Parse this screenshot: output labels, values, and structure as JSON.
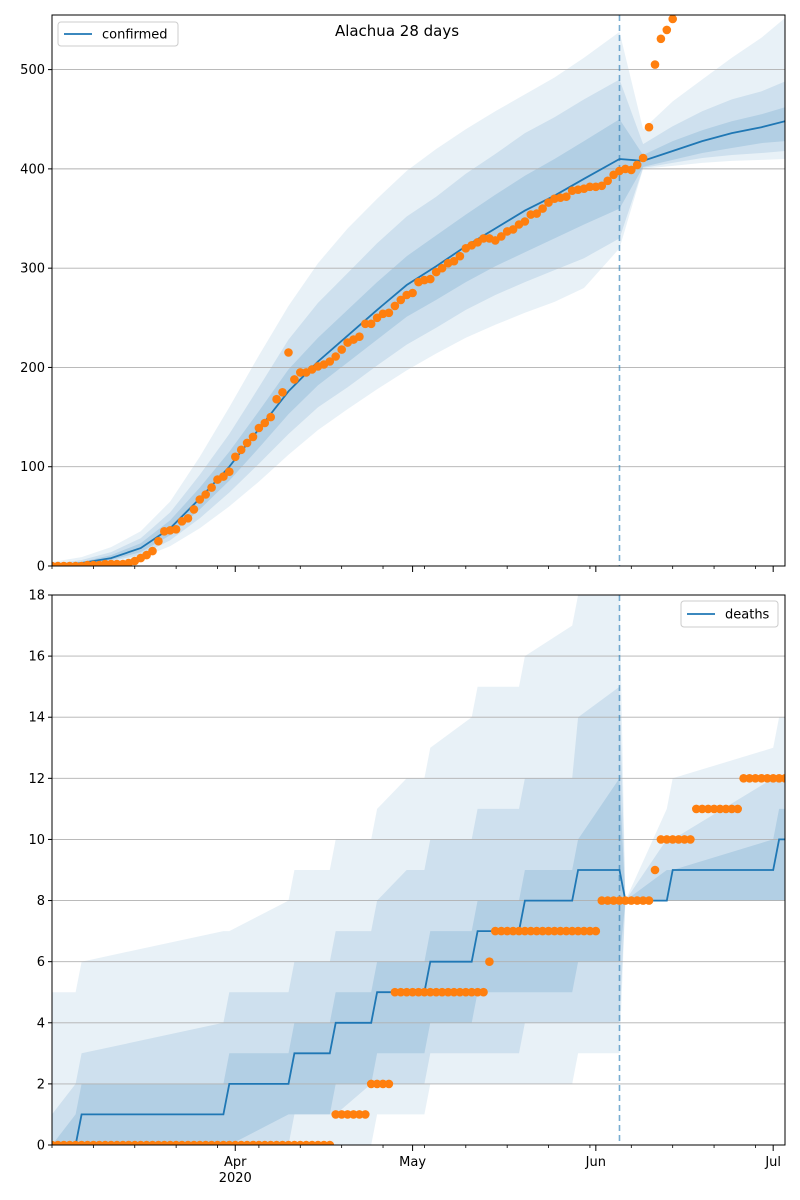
{
  "colors": {
    "model": "#1f77b4",
    "observed": "#ff7f0e",
    "band": "#1f77b4",
    "grid": "#b0b0b0"
  },
  "chart_data": [
    {
      "type": "line",
      "title": "Alachua 28 days",
      "legend": {
        "label": "confirmed",
        "placement": "top-left"
      },
      "x_ticks": [
        {
          "day": 31,
          "label": "Apr"
        },
        {
          "day": 61,
          "label": "May"
        },
        {
          "day": 92,
          "label": "Jun"
        },
        {
          "day": 122,
          "label": "Jul"
        }
      ],
      "x_year_label": {
        "day": 31,
        "label": "2020"
      },
      "xlim": [
        0,
        124
      ],
      "ylim": [
        0,
        555
      ],
      "yticks": [
        0,
        100,
        200,
        300,
        400,
        500
      ],
      "grid": "horizontal",
      "forecast_start_day": 96,
      "model": {
        "x": [
          0,
          5,
          10,
          15,
          20,
          25,
          30,
          35,
          40,
          45,
          50,
          55,
          60,
          65,
          70,
          75,
          80,
          85,
          90,
          96,
          100,
          105,
          110,
          115,
          120,
          124
        ],
        "y": [
          0,
          3,
          8,
          18,
          38,
          68,
          100,
          138,
          176,
          206,
          232,
          258,
          283,
          302,
          322,
          340,
          358,
          373,
          390,
          410,
          408,
          418,
          428,
          436,
          442,
          448
        ],
        "ci50": [
          [
            0,
            1
          ],
          [
            2,
            4
          ],
          [
            6,
            11
          ],
          [
            14,
            23
          ],
          [
            31,
            46
          ],
          [
            57,
            79
          ],
          [
            86,
            115
          ],
          [
            119,
            156
          ],
          [
            153,
            198
          ],
          [
            182,
            230
          ],
          [
            205,
            258
          ],
          [
            228,
            286
          ],
          [
            251,
            312
          ],
          [
            268,
            333
          ],
          [
            286,
            354
          ],
          [
            302,
            374
          ],
          [
            316,
            393
          ],
          [
            330,
            410
          ],
          [
            344,
            428
          ],
          [
            360,
            450
          ],
          [
            402,
            414
          ],
          [
            409,
            428
          ],
          [
            416,
            439
          ],
          [
            421,
            448
          ],
          [
            426,
            455
          ],
          [
            428,
            462
          ]
        ],
        "ci80": [
          [
            0,
            2
          ],
          [
            1,
            6
          ],
          [
            5,
            14
          ],
          [
            11,
            28
          ],
          [
            26,
            54
          ],
          [
            48,
            92
          ],
          [
            74,
            133
          ],
          [
            103,
            180
          ],
          [
            133,
            228
          ],
          [
            160,
            265
          ],
          [
            180,
            295
          ],
          [
            202,
            325
          ],
          [
            223,
            352
          ],
          [
            240,
            372
          ],
          [
            258,
            395
          ],
          [
            273,
            415
          ],
          [
            286,
            436
          ],
          [
            298,
            452
          ],
          [
            310,
            470
          ],
          [
            330,
            490
          ],
          [
            401,
            425
          ],
          [
            406,
            443
          ],
          [
            411,
            458
          ],
          [
            414,
            470
          ],
          [
            416,
            478
          ],
          [
            418,
            488
          ]
        ],
        "ci95": [
          [
            0,
            4
          ],
          [
            0,
            9
          ],
          [
            3,
            19
          ],
          [
            8,
            35
          ],
          [
            20,
            65
          ],
          [
            38,
            110
          ],
          [
            60,
            160
          ],
          [
            85,
            212
          ],
          [
            112,
            262
          ],
          [
            137,
            305
          ],
          [
            158,
            340
          ],
          [
            178,
            370
          ],
          [
            197,
            398
          ],
          [
            214,
            420
          ],
          [
            230,
            440
          ],
          [
            243,
            458
          ],
          [
            255,
            475
          ],
          [
            266,
            492
          ],
          [
            280,
            512
          ],
          [
            320,
            538
          ],
          [
            400,
            440
          ],
          [
            403,
            468
          ],
          [
            406,
            490
          ],
          [
            408,
            512
          ],
          [
            409,
            532
          ],
          [
            410,
            552
          ]
        ]
      },
      "observed": {
        "x": [
          0,
          1,
          2,
          3,
          4,
          5,
          6,
          7,
          8,
          9,
          10,
          11,
          12,
          13,
          14,
          15,
          16,
          17,
          18,
          19,
          20,
          21,
          22,
          23,
          24,
          25,
          26,
          27,
          28,
          29,
          30,
          31,
          32,
          33,
          34,
          35,
          36,
          37,
          38,
          39,
          40,
          41,
          42,
          43,
          44,
          45,
          46,
          47,
          48,
          49,
          50,
          51,
          52,
          53,
          54,
          55,
          56,
          57,
          58,
          59,
          60,
          61,
          62,
          63,
          64,
          65,
          66,
          67,
          68,
          69,
          70,
          71,
          72,
          73,
          74,
          75,
          76,
          77,
          78,
          79,
          80,
          81,
          82,
          83,
          84,
          85,
          86,
          87,
          88,
          89,
          90,
          91,
          92,
          93,
          94,
          95,
          96,
          97,
          98,
          99,
          100,
          101,
          102,
          103,
          104,
          105
        ],
        "y": [
          0,
          0,
          0,
          0,
          0,
          0,
          1,
          1,
          1,
          2,
          2,
          2,
          2,
          3,
          5,
          8,
          11,
          15,
          25,
          35,
          36,
          37,
          45,
          48,
          57,
          67,
          72,
          79,
          87,
          90,
          95,
          110,
          117,
          124,
          130,
          139,
          144,
          150,
          168,
          175,
          215,
          188,
          195,
          195,
          198,
          201,
          203,
          206,
          211,
          218,
          225,
          228,
          231,
          244,
          244,
          250,
          254,
          255,
          262,
          268,
          273,
          275,
          286,
          288,
          289,
          296,
          300,
          305,
          307,
          312,
          320,
          323,
          326,
          330,
          330,
          328,
          332,
          337,
          339,
          344,
          347,
          354,
          355,
          360,
          366,
          370,
          371,
          372,
          378,
          379,
          380,
          382,
          382,
          383,
          388,
          394,
          398,
          400,
          399,
          404,
          411,
          442,
          505,
          531,
          540,
          551
        ]
      }
    },
    {
      "type": "line",
      "title": "",
      "legend": {
        "label": "deaths",
        "placement": "top-right"
      },
      "x_ticks": [
        {
          "day": 31,
          "label": "Apr"
        },
        {
          "day": 61,
          "label": "May"
        },
        {
          "day": 92,
          "label": "Jun"
        },
        {
          "day": 122,
          "label": "Jul"
        }
      ],
      "x_year_label": {
        "day": 31,
        "label": "2020"
      },
      "xlim": [
        0,
        124
      ],
      "ylim": [
        0,
        18
      ],
      "yticks": [
        0,
        2,
        4,
        6,
        8,
        10,
        12,
        14,
        16,
        18
      ],
      "grid": "horizontal",
      "forecast_start_day": 96,
      "model": {
        "x": [
          0,
          4,
          5,
          29,
          30,
          40,
          41,
          47,
          48,
          54,
          55,
          60,
          61,
          63,
          64,
          71,
          72,
          79,
          80,
          88,
          89,
          96,
          97,
          104,
          105,
          122,
          123,
          124
        ],
        "y": [
          0,
          0,
          1,
          1,
          2,
          2,
          3,
          3,
          4,
          4,
          5,
          5,
          5,
          5,
          6,
          6,
          7,
          7,
          8,
          8,
          9,
          9,
          8,
          8,
          9,
          9,
          10,
          10
        ],
        "ci50": [
          [
            0,
            0
          ],
          [
            0,
            1
          ],
          [
            0,
            2
          ],
          [
            0,
            2
          ],
          [
            0,
            3
          ],
          [
            1,
            3
          ],
          [
            1,
            4
          ],
          [
            1,
            4
          ],
          [
            2,
            5
          ],
          [
            2,
            5
          ],
          [
            3,
            6
          ],
          [
            3,
            6
          ],
          [
            3,
            6
          ],
          [
            3,
            6
          ],
          [
            4,
            7
          ],
          [
            4,
            7
          ],
          [
            5,
            8
          ],
          [
            5,
            8
          ],
          [
            5,
            9
          ],
          [
            5,
            9
          ],
          [
            6,
            10
          ],
          [
            6,
            12
          ],
          [
            8,
            8
          ],
          [
            8,
            9
          ],
          [
            8,
            9
          ],
          [
            8,
            10
          ],
          [
            8,
            11
          ],
          [
            8,
            11
          ]
        ],
        "ci80": [
          [
            0,
            1
          ],
          [
            0,
            2
          ],
          [
            0,
            3
          ],
          [
            0,
            4
          ],
          [
            0,
            5
          ],
          [
            0,
            5
          ],
          [
            1,
            6
          ],
          [
            1,
            6
          ],
          [
            1,
            7
          ],
          [
            2,
            7
          ],
          [
            2,
            8
          ],
          [
            2,
            9
          ],
          [
            2,
            9
          ],
          [
            2,
            9
          ],
          [
            3,
            10
          ],
          [
            3,
            10
          ],
          [
            3,
            11
          ],
          [
            3,
            11
          ],
          [
            4,
            12
          ],
          [
            4,
            12
          ],
          [
            4,
            14
          ],
          [
            4,
            15
          ],
          [
            8,
            8
          ],
          [
            8,
            10
          ],
          [
            8,
            10
          ],
          [
            8,
            12
          ],
          [
            8,
            12
          ],
          [
            8,
            12
          ]
        ],
        "ci95": [
          [
            0,
            5
          ],
          [
            0,
            5
          ],
          [
            0,
            6
          ],
          [
            0,
            7
          ],
          [
            0,
            7
          ],
          [
            0,
            8
          ],
          [
            0,
            9
          ],
          [
            0,
            9
          ],
          [
            0,
            10
          ],
          [
            0,
            10
          ],
          [
            1,
            11
          ],
          [
            1,
            12
          ],
          [
            1,
            12
          ],
          [
            1,
            12
          ],
          [
            2,
            13
          ],
          [
            2,
            14
          ],
          [
            2,
            15
          ],
          [
            2,
            15
          ],
          [
            2,
            16
          ],
          [
            2,
            17
          ],
          [
            3,
            18
          ],
          [
            3,
            18
          ],
          [
            8,
            8
          ],
          [
            8,
            11
          ],
          [
            8,
            12
          ],
          [
            8,
            13
          ],
          [
            8,
            14
          ],
          [
            8,
            14
          ]
        ]
      },
      "observed": {
        "x": [
          0,
          1,
          2,
          3,
          4,
          5,
          6,
          7,
          8,
          9,
          10,
          11,
          12,
          13,
          14,
          15,
          16,
          17,
          18,
          19,
          20,
          21,
          22,
          23,
          24,
          25,
          26,
          27,
          28,
          29,
          30,
          31,
          32,
          33,
          34,
          35,
          36,
          37,
          38,
          39,
          40,
          41,
          42,
          43,
          44,
          45,
          46,
          47,
          48,
          49,
          50,
          51,
          52,
          53,
          54,
          55,
          56,
          57,
          58,
          59,
          60,
          61,
          62,
          63,
          64,
          65,
          66,
          67,
          68,
          69,
          70,
          71,
          72,
          73,
          74,
          75,
          76,
          77,
          78,
          79,
          80,
          81,
          82,
          83,
          84,
          85,
          86,
          87,
          88,
          89,
          90,
          91,
          92,
          93,
          94,
          95,
          96,
          97,
          98,
          99,
          100,
          101,
          102,
          103,
          104,
          105,
          106,
          107,
          108,
          109,
          110,
          111,
          112,
          113,
          114,
          115,
          116,
          117,
          118,
          119,
          120,
          121,
          122,
          123,
          124
        ],
        "y": [
          0,
          0,
          0,
          0,
          0,
          0,
          0,
          0,
          0,
          0,
          0,
          0,
          0,
          0,
          0,
          0,
          0,
          0,
          0,
          0,
          0,
          0,
          0,
          0,
          0,
          0,
          0,
          0,
          0,
          0,
          0,
          0,
          0,
          0,
          0,
          0,
          0,
          0,
          0,
          0,
          0,
          0,
          0,
          0,
          0,
          0,
          0,
          0,
          1,
          1,
          1,
          1,
          1,
          1,
          2,
          2,
          2,
          2,
          5,
          5,
          5,
          5,
          5,
          5,
          5,
          5,
          5,
          5,
          5,
          5,
          5,
          5,
          5,
          5,
          6,
          7,
          7,
          7,
          7,
          7,
          7,
          7,
          7,
          7,
          7,
          7,
          7,
          7,
          7,
          7,
          7,
          7,
          7,
          8,
          8,
          8,
          8,
          8,
          8,
          8,
          8,
          8,
          9,
          10,
          10,
          10,
          10,
          10,
          10,
          11,
          11,
          11,
          11,
          11,
          11,
          11,
          11,
          12,
          12,
          12,
          12,
          12,
          12,
          12,
          12
        ]
      }
    }
  ]
}
